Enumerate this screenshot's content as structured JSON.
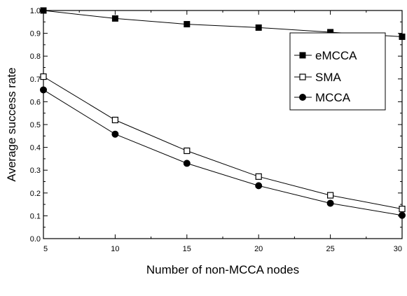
{
  "chart_data": {
    "type": "line",
    "title": "",
    "xlabel": "Number of non-MCCA nodes",
    "ylabel": "Average success rate",
    "xlim": [
      5,
      30
    ],
    "ylim": [
      0.0,
      1.0
    ],
    "x_ticks": [
      "5",
      "10",
      "15",
      "20",
      "25",
      "30"
    ],
    "y_ticks": [
      "0.0",
      "0.1",
      "0.2",
      "0.3",
      "0.4",
      "0.5",
      "0.6",
      "0.7",
      "0.8",
      "0.9",
      "1.0"
    ],
    "x": [
      5,
      10,
      15,
      20,
      25,
      30
    ],
    "grid": false,
    "legend_position": "right",
    "series": [
      {
        "name": "eMCCA",
        "marker": "filled-square",
        "values": [
          1.0,
          0.965,
          0.94,
          0.925,
          0.905,
          0.885
        ]
      },
      {
        "name": "SMA",
        "marker": "open-square",
        "values": [
          0.71,
          0.52,
          0.385,
          0.272,
          0.19,
          0.13
        ]
      },
      {
        "name": "MCCA",
        "marker": "filled-circle",
        "values": [
          0.652,
          0.458,
          0.33,
          0.232,
          0.155,
          0.102
        ]
      }
    ]
  }
}
